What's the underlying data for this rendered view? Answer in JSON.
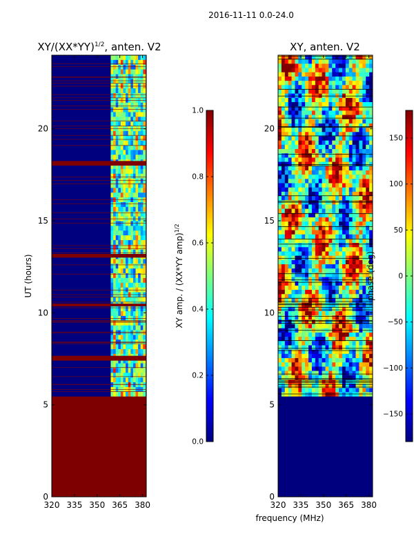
{
  "figure": {
    "suptitle": "2016-11-11 0.0-24.0",
    "shared_xlabel": "frequency (MHz)"
  },
  "colors": {
    "jet": [
      "#00007f",
      "#0000ff",
      "#007fff",
      "#00ffff",
      "#7fff7f",
      "#ffff00",
      "#ff7f00",
      "#ff0000",
      "#7f0000"
    ],
    "flag_row": "#7f0000",
    "gap_row_left": "#7f0000",
    "gap_row_right": "#00007f"
  },
  "chart_data": [
    {
      "type": "heatmap",
      "title": "XY/(XX*YY)",
      "title_exp": "1/2",
      "title_suffix": ", anten. V2",
      "xlabel": "",
      "ylabel": "UT (hours)",
      "xlim": [
        320,
        382.5
      ],
      "ylim": [
        0,
        24
      ],
      "x_ticks": [
        320,
        335,
        350,
        365,
        380
      ],
      "x_tick_labels": [
        "320",
        "335",
        "350",
        "365",
        "380"
      ],
      "y_ticks": [
        0,
        5,
        10,
        15,
        20
      ],
      "y_tick_labels": [
        "0",
        "5",
        "10",
        "15",
        "20"
      ],
      "active_band_mhz": [
        359,
        382
      ],
      "empty_band_mhz": [
        320,
        359
      ],
      "flagged_hours": [
        0,
        5.45
      ],
      "saturated_bands_hours": [
        [
          7.4,
          7.65
        ],
        [
          10.35,
          10.5
        ],
        [
          13.0,
          13.2
        ],
        [
          18.0,
          18.25
        ]
      ],
      "colorbar": {
        "label": "XY amp. / (XX*YY amp)",
        "label_exp": "1/2",
        "vmin": 0.0,
        "vmax": 1.0,
        "ticks": [
          0.0,
          0.2,
          0.4,
          0.6,
          0.8,
          1.0
        ],
        "tick_labels": [
          "0.0",
          "0.2",
          "0.4",
          "0.6",
          "0.8",
          "1.0"
        ]
      }
    },
    {
      "type": "heatmap",
      "title": "XY, anten. V2",
      "xlabel": "frequency (MHz)",
      "ylabel": "",
      "xlim": [
        320,
        382.5
      ],
      "ylim": [
        0,
        24
      ],
      "x_ticks": [
        320,
        335,
        350,
        365,
        380
      ],
      "x_tick_labels": [
        "320",
        "335",
        "350",
        "365",
        "380"
      ],
      "y_ticks": [
        0,
        5,
        10,
        15,
        20
      ],
      "y_tick_labels": [
        "0",
        "5",
        "10",
        "15",
        "20"
      ],
      "flagged_hours": [
        0,
        5.45
      ],
      "colorbar": {
        "label": "phase (deg)",
        "vmin": -180,
        "vmax": 180,
        "ticks": [
          -150,
          -100,
          -50,
          0,
          50,
          100,
          150
        ],
        "tick_labels": [
          "−150",
          "−100",
          "−50",
          "0",
          "50",
          "100",
          "150"
        ]
      }
    }
  ]
}
